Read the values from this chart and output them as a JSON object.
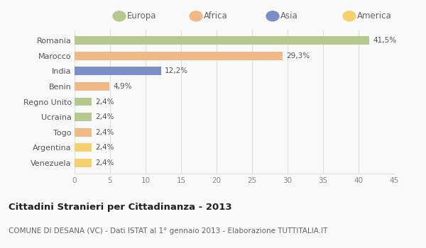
{
  "categories": [
    "Romania",
    "Marocco",
    "India",
    "Benin",
    "Regno Unito",
    "Ucraina",
    "Togo",
    "Argentina",
    "Venezuela"
  ],
  "values": [
    41.5,
    29.3,
    12.2,
    4.9,
    2.4,
    2.4,
    2.4,
    2.4,
    2.4
  ],
  "labels": [
    "41,5%",
    "29,3%",
    "12,2%",
    "4,9%",
    "2,4%",
    "2,4%",
    "2,4%",
    "2,4%",
    "2,4%"
  ],
  "colors": [
    "#b5c98e",
    "#f0b884",
    "#7b8ec8",
    "#f0b884",
    "#b5c98e",
    "#b5c98e",
    "#f0b884",
    "#f5d06e",
    "#f5d06e"
  ],
  "legend_labels": [
    "Europa",
    "Africa",
    "Asia",
    "America"
  ],
  "legend_colors": [
    "#b5c98e",
    "#f0b884",
    "#7b8ec8",
    "#f5d06e"
  ],
  "title": "Cittadini Stranieri per Cittadinanza - 2013",
  "subtitle": "COMUNE DI DESANA (VC) - Dati ISTAT al 1° gennaio 2013 - Elaborazione TUTTITALIA.IT",
  "xlim": [
    0,
    45
  ],
  "xticks": [
    0,
    5,
    10,
    15,
    20,
    25,
    30,
    35,
    40,
    45
  ],
  "bg_color": "#f9f9f9",
  "grid_color": "#e0e0e0"
}
